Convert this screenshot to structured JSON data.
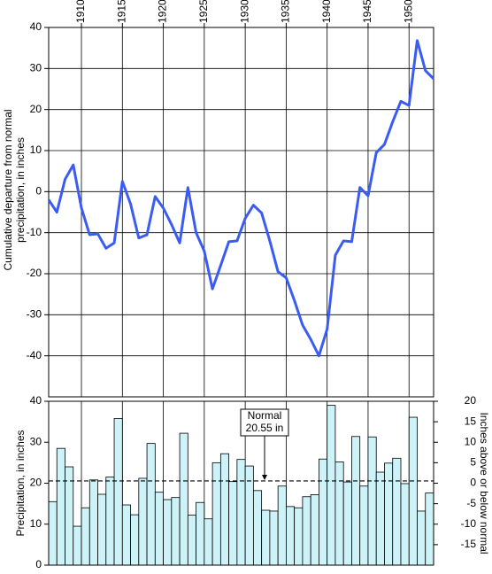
{
  "chart_data": [
    {
      "type": "line",
      "ylabel": [
        "Cumulative departure from normal",
        "precipitation, in inches"
      ],
      "x": [
        1906,
        1907,
        1908,
        1909,
        1910,
        1911,
        1912,
        1913,
        1914,
        1915,
        1916,
        1917,
        1918,
        1919,
        1920,
        1921,
        1922,
        1923,
        1924,
        1925,
        1926,
        1927,
        1928,
        1929,
        1930,
        1931,
        1932,
        1933,
        1934,
        1935,
        1936,
        1937,
        1938,
        1939,
        1940,
        1941,
        1942,
        1943,
        1944,
        1945,
        1946,
        1947,
        1948,
        1949,
        1950,
        1951,
        1952,
        1953
      ],
      "series": [
        {
          "color": "#3a5cf5",
          "values": [
            -2,
            -5,
            3,
            6.5,
            -4,
            -10.5,
            -10.3,
            -13.8,
            -12.5,
            2.5,
            -3,
            -11.3,
            -10.5,
            -1.2,
            -4,
            -8,
            -12.5,
            1,
            -10,
            -14.5,
            -23.7,
            -18,
            -12.2,
            -12,
            -6.5,
            -3.3,
            -5.2,
            -12,
            -19.5,
            -21,
            -26.5,
            -32.5,
            -36,
            -40,
            -33.5,
            -15.5,
            -12,
            -12.2,
            1,
            -1,
            9.5,
            11.5,
            17,
            22,
            21,
            36.8,
            29.5,
            27.5
          ]
        }
      ],
      "xlim": [
        1906,
        1953
      ],
      "xticks": [
        1910,
        1915,
        1920,
        1925,
        1930,
        1935,
        1940,
        1945,
        1950
      ],
      "ylim": [
        -50,
        40
      ],
      "yticks": [
        -40,
        -30,
        -20,
        -10,
        0,
        10,
        20,
        30,
        40
      ],
      "grid": true
    },
    {
      "type": "bar",
      "ylabel": "Precipitation, in inches",
      "y2label": "Inches above or below normal",
      "x": [
        1907,
        1908,
        1909,
        1910,
        1911,
        1912,
        1913,
        1914,
        1915,
        1916,
        1917,
        1918,
        1919,
        1920,
        1921,
        1922,
        1923,
        1924,
        1925,
        1926,
        1927,
        1928,
        1929,
        1930,
        1931,
        1932,
        1933,
        1934,
        1935,
        1936,
        1937,
        1938,
        1939,
        1940,
        1941,
        1942,
        1943,
        1944,
        1945,
        1946,
        1947,
        1948,
        1949,
        1950,
        1951,
        1952,
        1953
      ],
      "values": [
        15.5,
        28.5,
        24,
        9.5,
        14,
        20.8,
        17.3,
        21.5,
        35.8,
        14.7,
        12.3,
        21.2,
        29.7,
        17.8,
        16,
        16.5,
        32.2,
        12.2,
        15.3,
        11.3,
        25,
        27.2,
        20.4,
        25.8,
        24.2,
        18.2,
        13.4,
        13.2,
        19.3,
        14.3,
        14,
        16.7,
        17.2,
        25.9,
        39,
        25.2,
        20.3,
        31.4,
        19.3,
        31.3,
        22.7,
        24.9,
        26.1,
        19.9,
        36.1,
        13.2,
        17.6
      ],
      "color": "#cdf3f8",
      "xlim": [
        1906,
        1953
      ],
      "ylim": [
        0,
        40
      ],
      "yticks": [
        0,
        10,
        20,
        30,
        40
      ],
      "y2lim": [
        -20,
        20
      ],
      "y2ticks": [
        -15,
        -10,
        -5,
        0,
        5,
        10,
        15,
        20
      ],
      "normal": 20.55,
      "annotation": [
        "Normal",
        "20.55 in"
      ]
    }
  ]
}
